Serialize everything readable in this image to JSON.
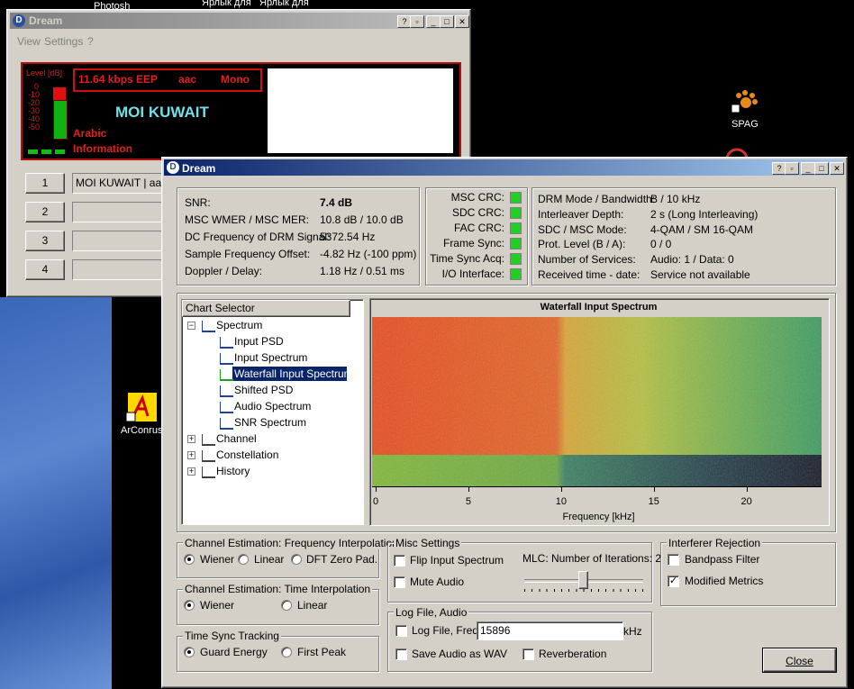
{
  "desktop": {
    "icons": [
      {
        "label": "Photosh"
      },
      {
        "label": "Ярлык для"
      },
      {
        "label": "Ярлык для"
      },
      {
        "label": "SPAG"
      },
      {
        "label": "ArConrus"
      }
    ]
  },
  "back_window": {
    "title": "Dream",
    "menu": [
      "View",
      "Settings",
      "?"
    ],
    "level_label": "Level [dB]",
    "level_ticks": [
      "0",
      "-10",
      "-20",
      "-30",
      "-40",
      "-50"
    ],
    "bitrate": "11.64 kbps EEP",
    "codec": "aac",
    "audio_mode": "Mono",
    "station": "MOI KUWAIT",
    "language": "Arabic",
    "program_type": "Information",
    "services": [
      {
        "button": "1",
        "label": "MOI KUWAIT  |  aa"
      },
      {
        "button": "2"
      },
      {
        "button": "3"
      },
      {
        "button": "4"
      }
    ]
  },
  "front_window": {
    "title": "Dream",
    "status": [
      {
        "label": "SNR:",
        "value": "7.4 dB"
      },
      {
        "label": "MSC WMER / MSC MER:",
        "value": "10.8 dB / 10.0 dB"
      },
      {
        "label": "DC Frequency of DRM Signal:",
        "value": "5372.54 Hz"
      },
      {
        "label": "Sample Frequency Offset:",
        "value": "-4.82 Hz (-100 ppm)"
      },
      {
        "label": "Doppler / Delay:",
        "value": "1.18 Hz / 0.51 ms"
      }
    ],
    "crc": [
      "MSC CRC:",
      "SDC CRC:",
      "FAC CRC:",
      "Frame Sync:",
      "Time Sync Acq:",
      "I/O Interface:"
    ],
    "mode": [
      {
        "label": "DRM Mode / Bandwidth:",
        "value": "B / 10 kHz"
      },
      {
        "label": "Interleaver Depth:",
        "value": "2 s (Long Interleaving)"
      },
      {
        "label": "SDC / MSC Mode:",
        "value": "4-QAM / SM 16-QAM"
      },
      {
        "label": "Prot. Level (B / A):",
        "value": "0 / 0"
      },
      {
        "label": "Number of Services:",
        "value": "Audio: 1 / Data: 0"
      },
      {
        "label": "Received time - date:",
        "value": "Service not available"
      }
    ],
    "chart_selector": {
      "header": "Chart Selector",
      "items": [
        {
          "label": "Spectrum",
          "children": [
            "Input PSD",
            "Input Spectrum",
            "Waterfall Input Spectrum",
            "Shifted PSD",
            "Audio Spectrum",
            "SNR Spectrum"
          ]
        },
        {
          "label": "Channel"
        },
        {
          "label": "Constellation"
        },
        {
          "label": "History"
        }
      ]
    },
    "chart": {
      "title": "Waterfall Input Spectrum",
      "x_label": "Frequency [kHz]",
      "xlim": [
        0,
        24
      ],
      "xticks": [
        0,
        5,
        10,
        15,
        20
      ]
    },
    "freq_interp": {
      "title": "Channel Estimation: Frequency Interpolation",
      "options": [
        "Wiener",
        "Linear",
        "DFT Zero Pad."
      ]
    },
    "time_interp": {
      "title": "Channel Estimation: Time Interpolation",
      "options": [
        "Wiener",
        "Linear"
      ]
    },
    "time_sync": {
      "title": "Time Sync Tracking",
      "options": [
        "Guard Energy",
        "First Peak"
      ]
    },
    "misc": {
      "title": "Misc Settings",
      "flip": "Flip Input Spectrum",
      "mute": "Mute Audio",
      "mlc": "MLC: Number of Iterations: 2"
    },
    "log": {
      "title": "Log File, Audio",
      "log_file": "Log File, Freq:",
      "freq": "15896",
      "unit": "kHz",
      "save_wav": "Save Audio as WAV",
      "reverb": "Reverberation"
    },
    "interferer": {
      "title": "Interferer Rejection",
      "bandpass": "Bandpass Filter",
      "modified": "Modified Metrics"
    },
    "close": "Close"
  }
}
